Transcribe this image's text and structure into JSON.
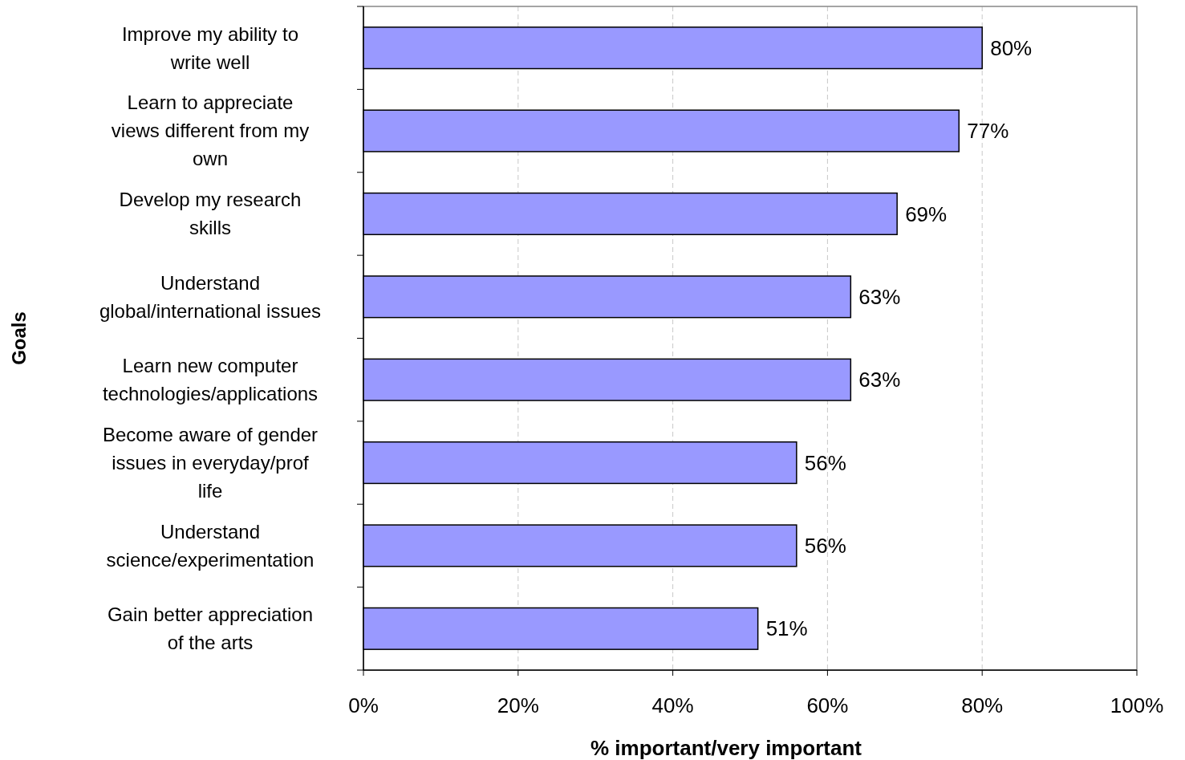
{
  "chart_data": {
    "type": "bar",
    "orientation": "horizontal",
    "categories": [
      "Improve my ability to\nwrite well",
      "Learn to appreciate\nviews different from my\nown",
      "Develop my research\nskills",
      "Understand\nglobal/international issues",
      "Learn new computer\ntechnologies/applications",
      "Become aware of gender\nissues in everyday/prof\nlife",
      "Understand\nscience/experimentation",
      "Gain better appreciation\nof the arts"
    ],
    "values": [
      80,
      77,
      69,
      63,
      63,
      56,
      56,
      51
    ],
    "color": "#9999ff",
    "value_labels": [
      "80%",
      "77%",
      "69%",
      "63%",
      "63%",
      "56%",
      "56%",
      "51%"
    ],
    "xlim": [
      0,
      100
    ],
    "xticks": [
      {
        "value": 0,
        "label": "0%"
      },
      {
        "value": 20,
        "label": "20%"
      },
      {
        "value": 40,
        "label": "40%"
      },
      {
        "value": 60,
        "label": "60%"
      },
      {
        "value": 80,
        "label": "80%"
      },
      {
        "value": 100,
        "label": "100%"
      }
    ],
    "xlabel": "% important/very important",
    "ylabel": "Goals",
    "grid": "x"
  }
}
